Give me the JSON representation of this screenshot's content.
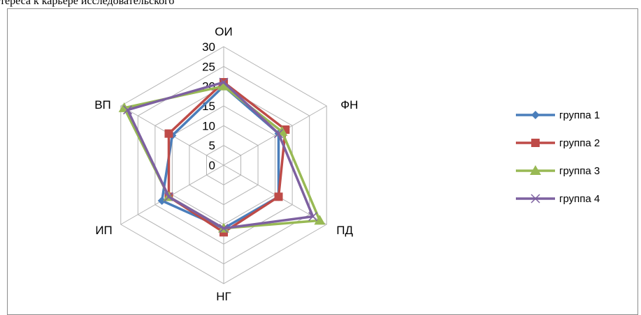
{
  "page": {
    "cut_title": "тереса к карьере исследовательского"
  },
  "chart_data": {
    "type": "radar",
    "title": "",
    "categories": [
      "ОИ",
      "ФН",
      "ПД",
      "НГ",
      "ИП",
      "ВП"
    ],
    "rmax": 30,
    "ticks": [
      0,
      5,
      10,
      15,
      20,
      25,
      30
    ],
    "tick_labels": [
      "0",
      "5",
      "10",
      "15",
      "20",
      "25",
      "30"
    ],
    "grid": true,
    "legend_position": "right",
    "series": [
      {
        "name": "группа 1",
        "values": [
          20,
          16,
          16,
          16,
          18,
          15
        ],
        "color": "#4a7ebb",
        "marker": "diamond"
      },
      {
        "name": "группа 2",
        "values": [
          21,
          18,
          16,
          17,
          16,
          16
        ],
        "color": "#be4b48",
        "marker": "square"
      },
      {
        "name": "группа 3",
        "values": [
          20,
          17,
          28,
          16,
          16,
          29
        ],
        "color": "#98b954",
        "marker": "triangle"
      },
      {
        "name": "группа 4",
        "values": [
          21,
          16,
          26,
          16,
          16,
          28
        ],
        "color": "#7d60a0",
        "marker": "x"
      }
    ]
  }
}
